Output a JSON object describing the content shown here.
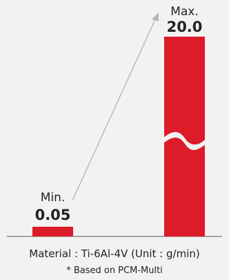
{
  "chart_data": {
    "type": "bar",
    "categories": [
      "Min.",
      "Max."
    ],
    "values": [
      0.05,
      20.0
    ],
    "value_labels": [
      "0.05",
      "20.0"
    ],
    "axis_break": true,
    "colors": {
      "bar": "#dd1c29",
      "arrow": "#b5b5b5",
      "axis": "#555555",
      "background": "#f2f2f2"
    }
  },
  "caption": {
    "material": "Material : Ti-6Al-4V (Unit : g/min)",
    "note": "* Based on PCM-Multi"
  }
}
